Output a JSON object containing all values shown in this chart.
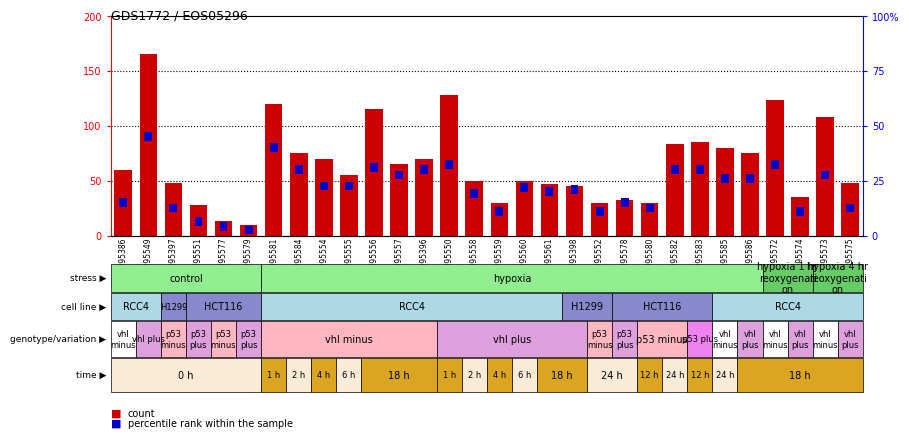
{
  "title": "GDS1772 / EOS05296",
  "samples": [
    "GSM95386",
    "GSM95549",
    "GSM95397",
    "GSM95551",
    "GSM95577",
    "GSM95579",
    "GSM95581",
    "GSM95584",
    "GSM95554",
    "GSM95555",
    "GSM95556",
    "GSM95557",
    "GSM95396",
    "GSM95550",
    "GSM95558",
    "GSM95559",
    "GSM95560",
    "GSM95561",
    "GSM95398",
    "GSM95552",
    "GSM95578",
    "GSM95580",
    "GSM95582",
    "GSM95583",
    "GSM95585",
    "GSM95586",
    "GSM95572",
    "GSM95574",
    "GSM95573",
    "GSM95575"
  ],
  "red_values": [
    60,
    165,
    48,
    28,
    13,
    10,
    120,
    75,
    70,
    55,
    115,
    65,
    70,
    128,
    50,
    30,
    50,
    47,
    45,
    30,
    32,
    30,
    83,
    85,
    80,
    75,
    123,
    35,
    108,
    48
  ],
  "blue_positions": [
    30,
    90,
    25,
    13,
    8,
    5,
    80,
    60,
    45,
    45,
    62,
    55,
    60,
    65,
    38,
    22,
    44,
    40,
    42,
    22,
    30,
    25,
    60,
    60,
    52,
    52,
    65,
    22,
    55,
    25
  ],
  "ylim_left": [
    0,
    200
  ],
  "ylim_right": [
    0,
    100
  ],
  "yticks_left": [
    0,
    50,
    100,
    150,
    200
  ],
  "yticks_right": [
    0,
    25,
    50,
    75,
    100
  ],
  "ytick_labels_right": [
    "0",
    "25",
    "50",
    "75",
    "100%"
  ],
  "stress_groups": [
    {
      "label": "control",
      "start": 0,
      "end": 6,
      "color": "#90EE90"
    },
    {
      "label": "hypoxia",
      "start": 6,
      "end": 26,
      "color": "#90EE90"
    },
    {
      "label": "hypoxia 1 hr\nreoxygenati\non",
      "start": 26,
      "end": 28,
      "color": "#66CC66"
    },
    {
      "label": "hypoxia 4 hr\nreoxygenati\non",
      "start": 28,
      "end": 30,
      "color": "#66CC66"
    }
  ],
  "cell_line_groups": [
    {
      "label": "RCC4",
      "start": 0,
      "end": 2,
      "color": "#ADD8E6"
    },
    {
      "label": "H1299",
      "start": 2,
      "end": 3,
      "color": "#8888CC"
    },
    {
      "label": "HCT116",
      "start": 3,
      "end": 6,
      "color": "#8888CC"
    },
    {
      "label": "RCC4",
      "start": 6,
      "end": 18,
      "color": "#ADD8E6"
    },
    {
      "label": "H1299",
      "start": 18,
      "end": 20,
      "color": "#8888CC"
    },
    {
      "label": "HCT116",
      "start": 20,
      "end": 24,
      "color": "#8888CC"
    },
    {
      "label": "RCC4",
      "start": 24,
      "end": 30,
      "color": "#ADD8E6"
    }
  ],
  "genotype_groups": [
    {
      "label": "vhl\nminus",
      "start": 0,
      "end": 1,
      "color": "white"
    },
    {
      "label": "vhl plus",
      "start": 1,
      "end": 2,
      "color": "#DDA0DD"
    },
    {
      "label": "p53\nminus",
      "start": 2,
      "end": 3,
      "color": "#FFB6C1"
    },
    {
      "label": "p53\nplus",
      "start": 3,
      "end": 4,
      "color": "#DDA0DD"
    },
    {
      "label": "p53\nminus",
      "start": 4,
      "end": 5,
      "color": "#FFB6C1"
    },
    {
      "label": "p53\nplus",
      "start": 5,
      "end": 6,
      "color": "#DDA0DD"
    },
    {
      "label": "vhl minus",
      "start": 6,
      "end": 13,
      "color": "#FFB6C1"
    },
    {
      "label": "vhl plus",
      "start": 13,
      "end": 19,
      "color": "#DDA0DD"
    },
    {
      "label": "p53\nminus",
      "start": 19,
      "end": 20,
      "color": "#FFB6C1"
    },
    {
      "label": "p53\nplus",
      "start": 20,
      "end": 21,
      "color": "#DDA0DD"
    },
    {
      "label": "p53 minus",
      "start": 21,
      "end": 23,
      "color": "#FFB6C1"
    },
    {
      "label": "p53 plus",
      "start": 23,
      "end": 24,
      "color": "#EE82EE"
    },
    {
      "label": "vhl\nminus",
      "start": 24,
      "end": 25,
      "color": "white"
    },
    {
      "label": "vhl\nplus",
      "start": 25,
      "end": 26,
      "color": "#DDA0DD"
    },
    {
      "label": "vhl\nminus",
      "start": 26,
      "end": 27,
      "color": "white"
    },
    {
      "label": "vhl\nplus",
      "start": 27,
      "end": 28,
      "color": "#DDA0DD"
    },
    {
      "label": "vhl\nminus",
      "start": 28,
      "end": 29,
      "color": "white"
    },
    {
      "label": "vhl\nplus",
      "start": 29,
      "end": 30,
      "color": "#DDA0DD"
    }
  ],
  "time_groups": [
    {
      "label": "0 h",
      "start": 0,
      "end": 6,
      "color": "#FAEBD7"
    },
    {
      "label": "1 h",
      "start": 6,
      "end": 7,
      "color": "#DAA520"
    },
    {
      "label": "2 h",
      "start": 7,
      "end": 8,
      "color": "#FAEBD7"
    },
    {
      "label": "4 h",
      "start": 8,
      "end": 9,
      "color": "#DAA520"
    },
    {
      "label": "6 h",
      "start": 9,
      "end": 10,
      "color": "#FAEBD7"
    },
    {
      "label": "18 h",
      "start": 10,
      "end": 13,
      "color": "#DAA520"
    },
    {
      "label": "1 h",
      "start": 13,
      "end": 14,
      "color": "#DAA520"
    },
    {
      "label": "2 h",
      "start": 14,
      "end": 15,
      "color": "#FAEBD7"
    },
    {
      "label": "4 h",
      "start": 15,
      "end": 16,
      "color": "#DAA520"
    },
    {
      "label": "6 h",
      "start": 16,
      "end": 17,
      "color": "#FAEBD7"
    },
    {
      "label": "18 h",
      "start": 17,
      "end": 19,
      "color": "#DAA520"
    },
    {
      "label": "24 h",
      "start": 19,
      "end": 21,
      "color": "#FAEBD7"
    },
    {
      "label": "12 h",
      "start": 21,
      "end": 22,
      "color": "#DAA520"
    },
    {
      "label": "24 h",
      "start": 22,
      "end": 23,
      "color": "#FAEBD7"
    },
    {
      "label": "12 h",
      "start": 23,
      "end": 24,
      "color": "#DAA520"
    },
    {
      "label": "24 h",
      "start": 24,
      "end": 25,
      "color": "#FAEBD7"
    },
    {
      "label": "18 h",
      "start": 25,
      "end": 30,
      "color": "#DAA520"
    }
  ],
  "bar_color_red": "#CC0000",
  "bar_color_blue": "#0000CC",
  "row_order": [
    "stress",
    "cell_line",
    "genotype",
    "time"
  ]
}
